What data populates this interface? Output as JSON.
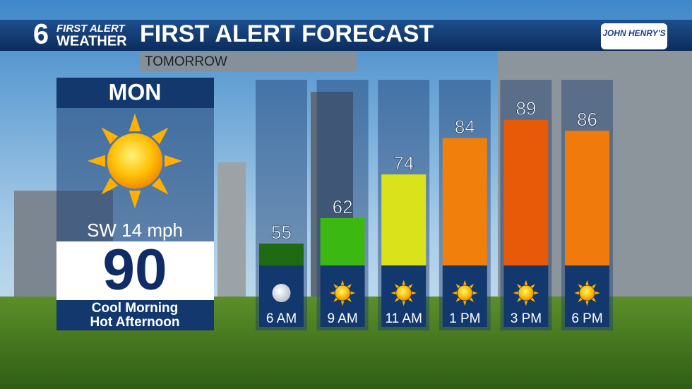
{
  "branding": {
    "number": "6",
    "line1": "FIRST ALERT",
    "line2": "WEATHER",
    "sponsor": "JOHN HENRY'S"
  },
  "day_panel": {
    "day": "MON",
    "wind": "SW 14 mph",
    "high": 90,
    "description": [
      "Cool Morning",
      "Hot Afternoon"
    ]
  },
  "chart_data": {
    "type": "bar",
    "title": "FIRST ALERT FORECAST",
    "subtitle": "TOMORROW",
    "categories": [
      "6 AM",
      "9 AM",
      "11 AM",
      "1 PM",
      "3 PM",
      "6 PM"
    ],
    "values": [
      55,
      62,
      74,
      84,
      89,
      86
    ],
    "colors": [
      "#1e6b14",
      "#3cb812",
      "#d9e21a",
      "#f07f0c",
      "#e85a08",
      "#f07a0c"
    ],
    "icons": [
      "moon",
      "sun",
      "sun",
      "sun",
      "sun",
      "sun"
    ],
    "ylim": [
      49,
      100
    ]
  }
}
